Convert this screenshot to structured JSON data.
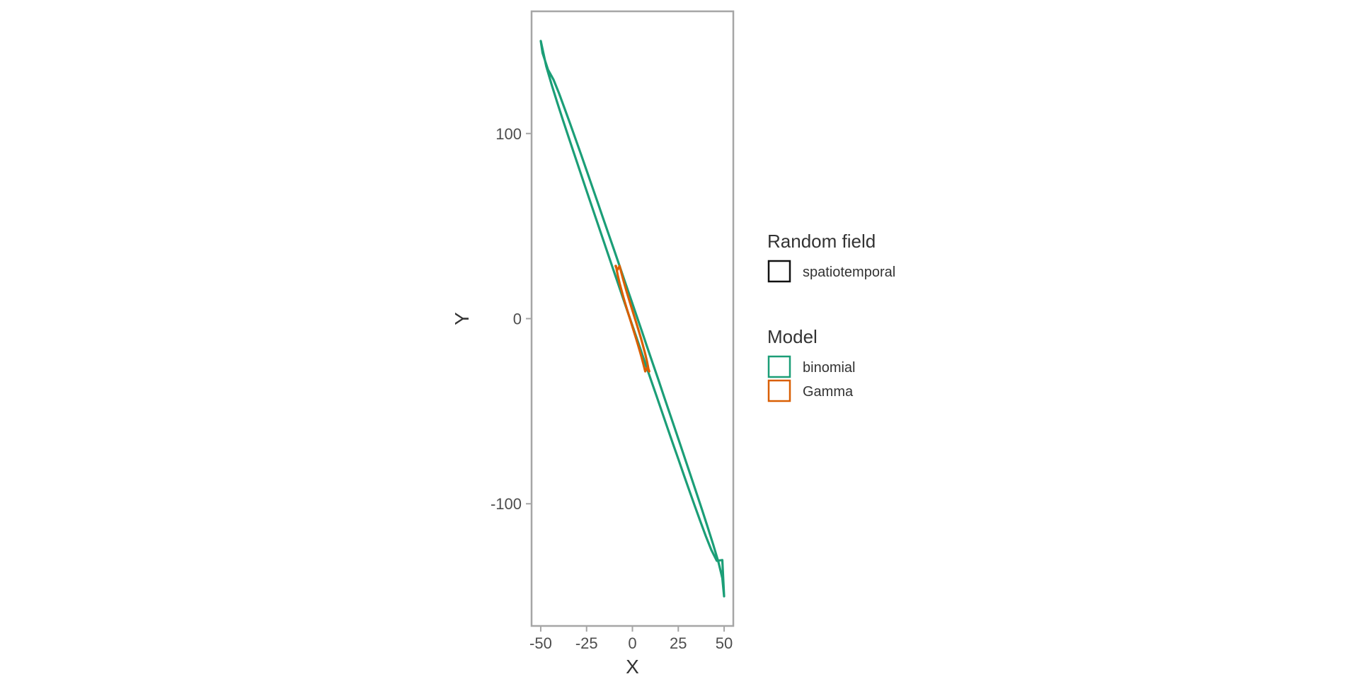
{
  "chart_data": {
    "type": "line",
    "title": "",
    "xlabel": "X",
    "ylabel": "Y",
    "xlim": [
      -55,
      55
    ],
    "ylim": [
      -166,
      166
    ],
    "x_ticks": [
      -50,
      -25,
      0,
      25,
      50
    ],
    "x_tick_labels": [
      "-50",
      "-25",
      "0",
      "25",
      "50"
    ],
    "y_ticks": [
      -100,
      0,
      100
    ],
    "y_tick_labels": [
      "-100",
      "0",
      "100"
    ],
    "grid": false,
    "legend_position": "right",
    "legends": [
      {
        "title": "Random field",
        "entries": [
          {
            "label": "spatiotemporal",
            "color": "#111111"
          }
        ]
      },
      {
        "title": "Model",
        "entries": [
          {
            "label": "binomial",
            "color": "#1b9e77"
          },
          {
            "label": "Gamma",
            "color": "#d95f02"
          }
        ]
      }
    ],
    "series": [
      {
        "model": "binomial",
        "random_field": "spatiotemporal",
        "color": "#1b9e77",
        "shape": "ellipse",
        "x": [
          -50,
          -47,
          -44,
          -41,
          -38,
          -35,
          -32,
          -29,
          -26,
          -23,
          -20,
          -17,
          -14,
          -11,
          -8,
          -5,
          -2,
          1,
          4,
          7,
          10,
          13,
          16,
          19,
          22,
          25,
          28,
          31,
          34,
          37,
          40,
          43,
          46,
          49,
          50,
          49,
          47,
          44,
          41,
          38,
          35,
          32,
          29,
          26,
          23,
          20,
          17,
          14,
          11,
          8,
          5,
          2,
          -1,
          -4,
          -7,
          -10,
          -13,
          -16,
          -19,
          -22,
          -25,
          -28,
          -31,
          -34,
          -37,
          -40,
          -43,
          -46,
          -49,
          -50
        ],
        "y": [
          150,
          136.4,
          126.2,
          116.7,
          107.6,
          98.6,
          89.7,
          80.8,
          72.0,
          63.2,
          54.4,
          45.6,
          36.9,
          28.1,
          19.4,
          10.7,
          2.0,
          -6.7,
          -15.4,
          -24.1,
          -32.8,
          -41.4,
          -50.1,
          -58.7,
          -67.3,
          -75.8,
          -84.3,
          -92.8,
          -101.2,
          -109.4,
          -117.4,
          -124.9,
          -130.8,
          -130.4,
          -150,
          -140.2,
          -131.9,
          -121.9,
          -112.5,
          -103.4,
          -94.4,
          -85.5,
          -76.6,
          -67.8,
          -59.0,
          -50.2,
          -41.4,
          -32.6,
          -23.9,
          -15.2,
          -6.4,
          2.3,
          11.0,
          19.7,
          28.4,
          37.1,
          45.7,
          54.3,
          62.9,
          71.5,
          80.1,
          88.6,
          97.0,
          105.4,
          113.6,
          121.6,
          129.0,
          134.4,
          143.5,
          150
        ]
      },
      {
        "model": "Gamma",
        "random_field": "spatiotemporal",
        "color": "#d95f02",
        "shape": "ellipse",
        "x": [
          -9,
          -8,
          -7,
          -6,
          -5,
          -4,
          -3,
          -2,
          -1,
          0,
          1,
          2,
          3,
          4,
          5,
          6,
          7,
          8,
          9,
          9.2,
          9,
          8,
          7,
          6,
          5,
          4,
          3,
          2,
          1,
          0,
          -1,
          -2,
          -3,
          -4,
          -5,
          -6,
          -7,
          -8,
          -9,
          -9.2
        ],
        "y": [
          28.5,
          23.3,
          19.1,
          15.4,
          11.9,
          8.5,
          5.2,
          2.0,
          -1.2,
          -4.4,
          -7.6,
          -10.8,
          -14.1,
          -17.5,
          -21.0,
          -24.6,
          -28.5,
          -26.6,
          -27.8,
          -28.5,
          -28.5,
          -23.3,
          -19.1,
          -15.4,
          -11.9,
          -8.5,
          -5.2,
          -2.0,
          1.2,
          4.4,
          7.6,
          10.8,
          14.1,
          17.5,
          21.0,
          24.6,
          28.5,
          26.6,
          27.8,
          28.5
        ]
      }
    ]
  }
}
